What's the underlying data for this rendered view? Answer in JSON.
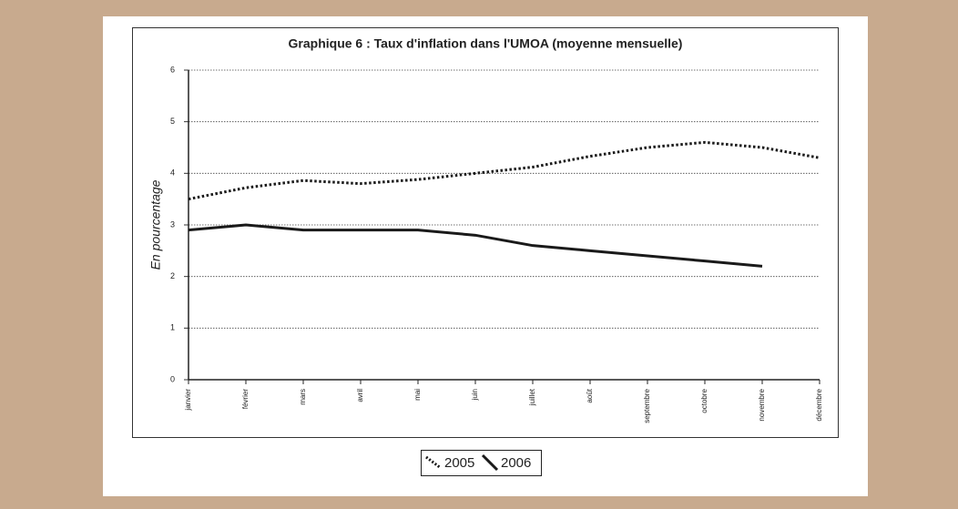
{
  "chart_data": {
    "type": "line",
    "title": "Graphique 6 : Taux d'inflation dans l'UMOA (moyenne mensuelle)",
    "y_label": "En pourcentage",
    "categories": [
      "janvier",
      "février",
      "mars",
      "avril",
      "mai",
      "juin",
      "juillet",
      "août",
      "septembre",
      "octobre",
      "novembre",
      "décembre"
    ],
    "series": [
      {
        "name": "2005",
        "color": "#1a1a1a",
        "line_style": "dotted",
        "values": [
          3.5,
          3.72,
          3.86,
          3.8,
          3.88,
          4.0,
          4.12,
          4.33,
          4.5,
          4.6,
          4.5,
          4.3
        ]
      },
      {
        "name": "2006",
        "color": "#1a1a1a",
        "line_style": "solid",
        "values": [
          2.9,
          3.0,
          2.9,
          2.9,
          2.9,
          2.8,
          2.6,
          2.5,
          2.4,
          2.3,
          2.2,
          null
        ]
      }
    ],
    "ylim": [
      0,
      6
    ],
    "yticks": [
      0,
      1,
      2,
      3,
      4,
      5,
      6
    ],
    "grid": true,
    "legend": "bottom"
  }
}
